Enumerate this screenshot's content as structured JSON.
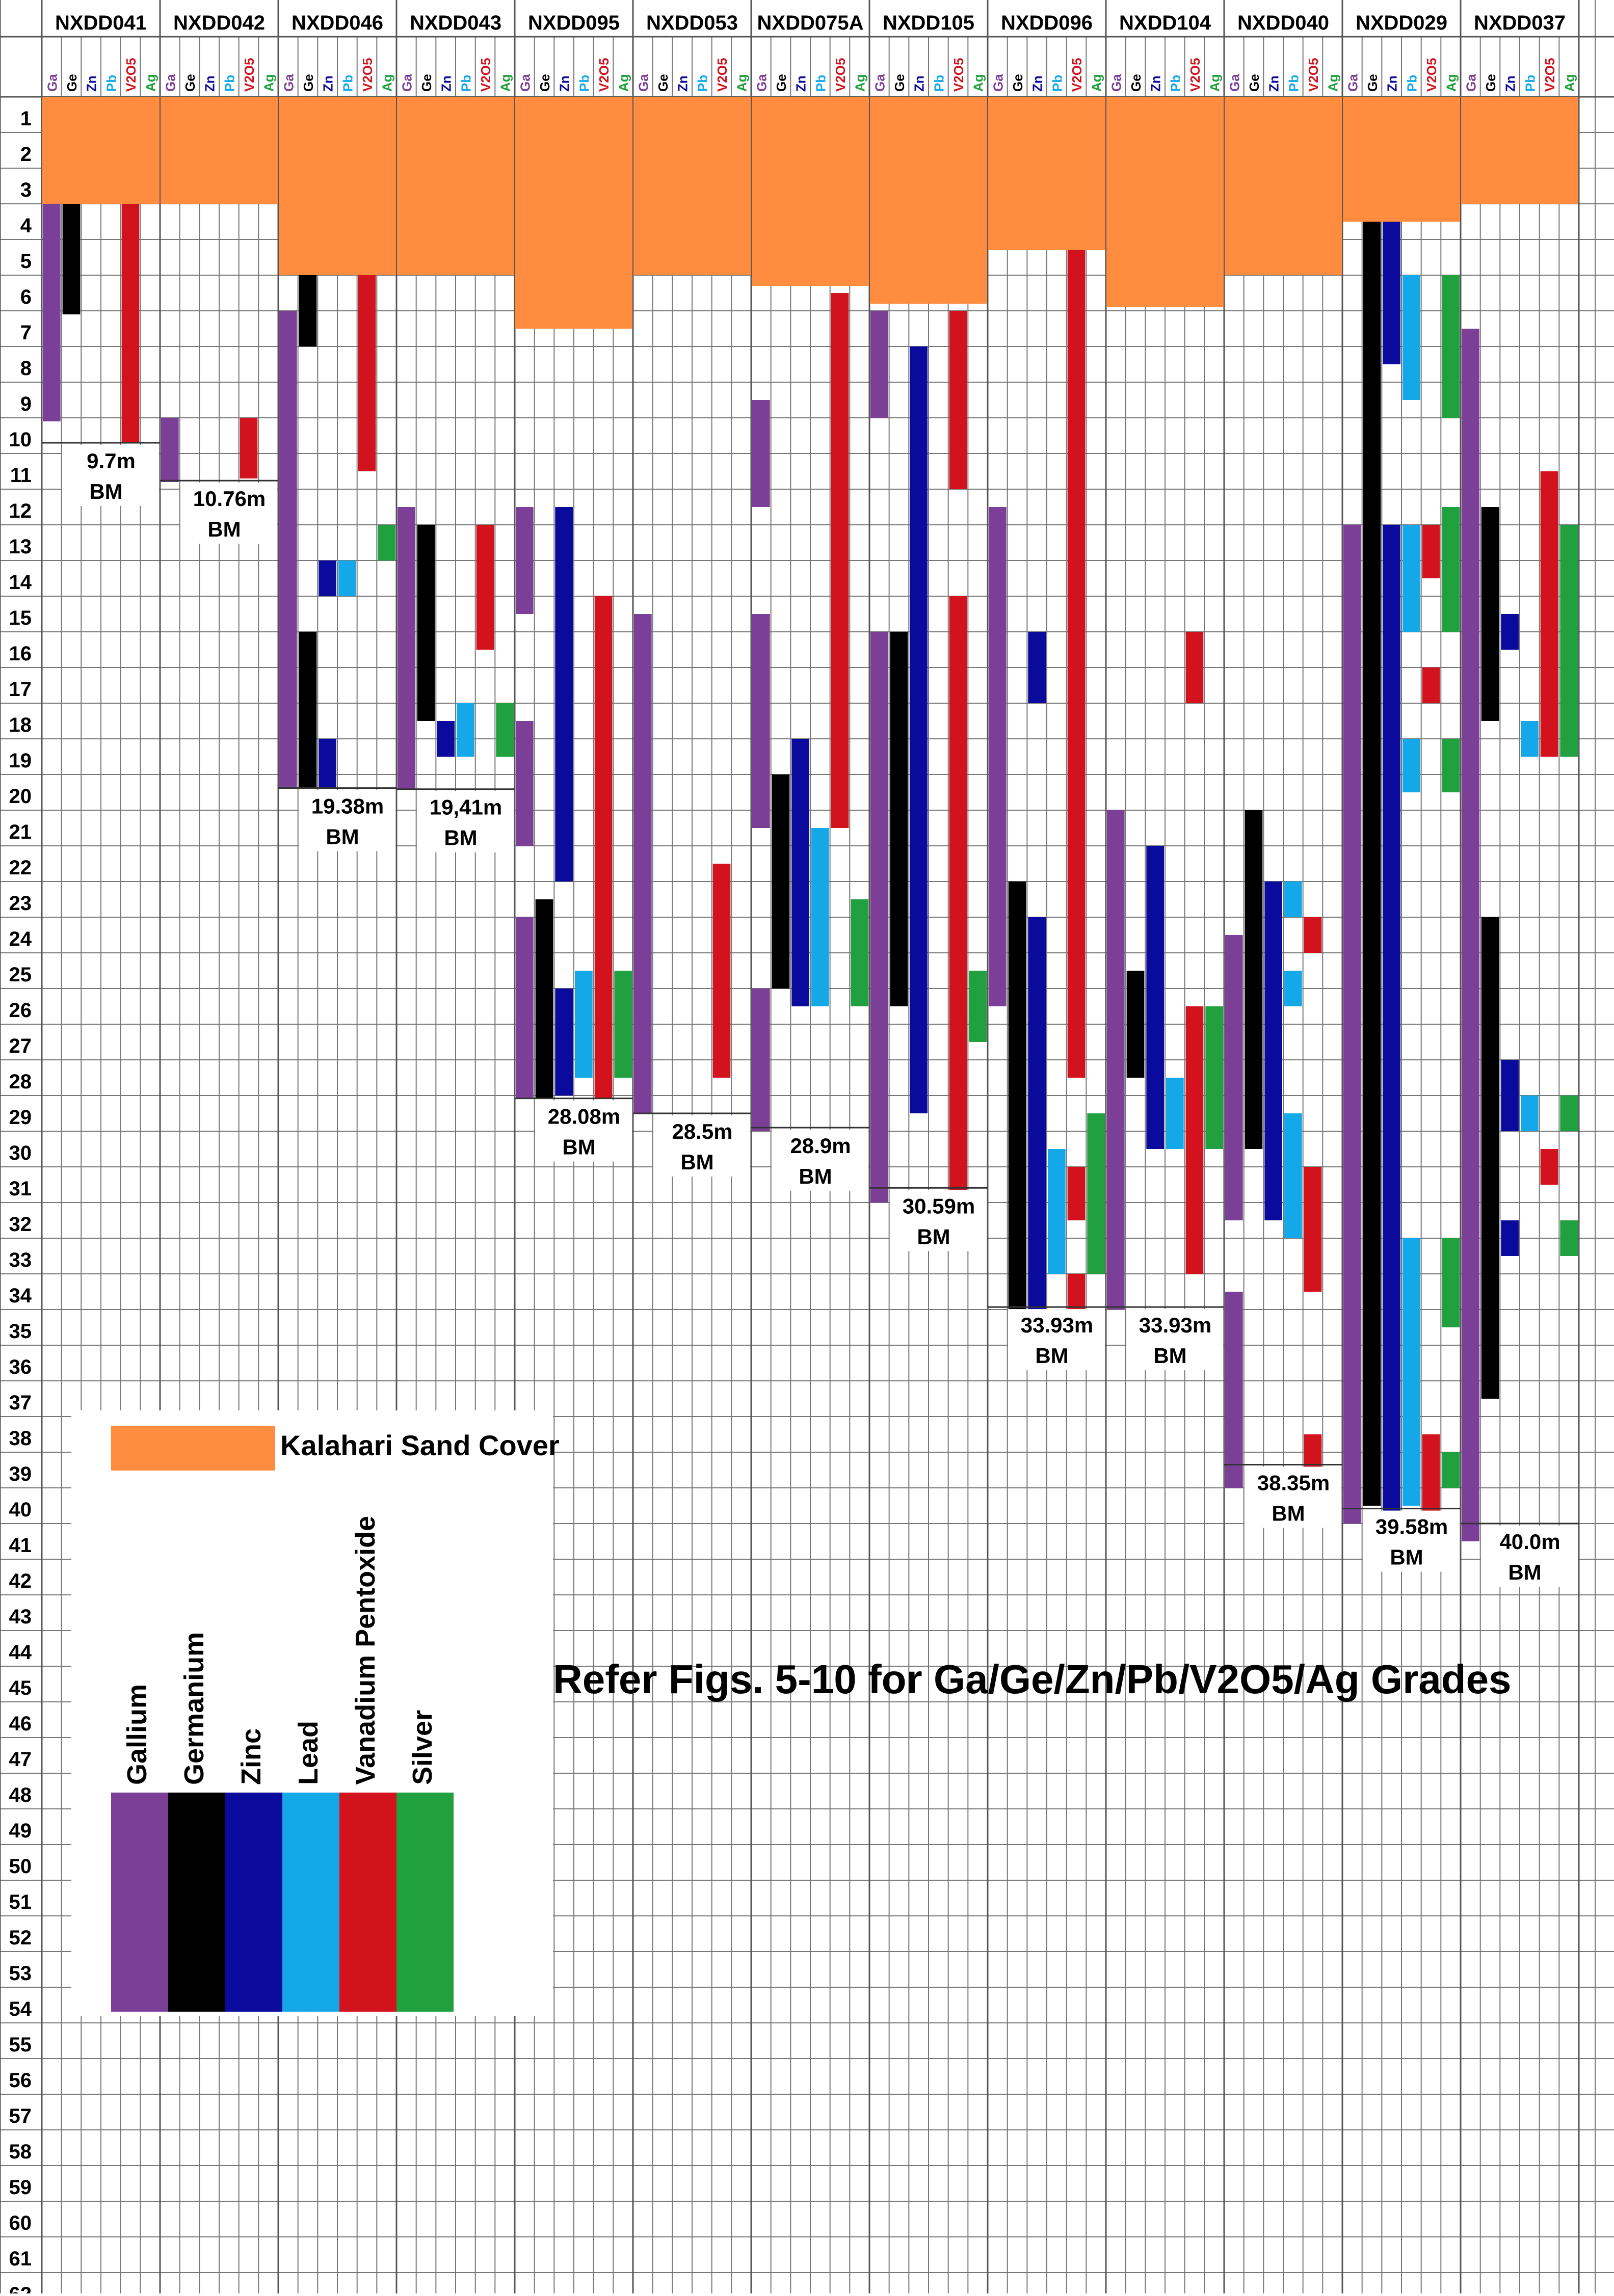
{
  "chart_data": {
    "type": "strip-log",
    "depth_min": 0,
    "depth_max": 62,
    "depth_unit": "m",
    "depth_ticks": [
      1,
      2,
      3,
      4,
      5,
      6,
      7,
      8,
      9,
      10,
      11,
      12,
      13,
      14,
      15,
      16,
      17,
      18,
      19,
      20,
      21,
      22,
      23,
      24,
      25,
      26,
      27,
      28,
      29,
      30,
      31,
      32,
      33,
      34,
      35,
      36,
      37,
      38,
      39,
      40,
      41,
      42,
      43,
      44,
      45,
      46,
      47,
      48,
      49,
      50,
      51,
      52,
      53,
      54,
      55,
      56,
      57,
      58,
      59,
      60,
      61,
      62
    ],
    "element_columns": [
      "Ga",
      "Ge",
      "Zn",
      "Pb",
      "V2O5",
      "Ag"
    ],
    "element_colors": {
      "Ga": "#7b3f98",
      "Ge": "#000000",
      "Zn": "#0a0a9c",
      "Pb": "#14a8e8",
      "V2O5": "#d2121c",
      "Ag": "#21a03f",
      "sand": "#ff8c3f"
    },
    "holes": [
      {
        "id": "NXDD041",
        "sand_to": 3,
        "eoh": 9.7,
        "eoh_label": "9.7m",
        "bm_label": "BM",
        "intervals": {
          "Ga": [
            [
              3,
              9.1
            ]
          ],
          "Ge": [
            [
              3,
              6.1
            ]
          ],
          "V2O5": [
            [
              3,
              9.7
            ]
          ]
        }
      },
      {
        "id": "NXDD042",
        "sand_to": 3,
        "eoh": 10.76,
        "eoh_label": "10.76m",
        "bm_label": "BM",
        "intervals": {
          "Ga": [
            [
              9,
              10.8
            ]
          ],
          "V2O5": [
            [
              9,
              10.7
            ]
          ]
        }
      },
      {
        "id": "NXDD046",
        "sand_to": 5,
        "eoh": 19.38,
        "eoh_label": "19.38m",
        "bm_label": "BM",
        "intervals": {
          "Ga": [
            [
              6,
              19.4
            ]
          ],
          "Ge": [
            [
              5,
              7
            ],
            [
              15,
              19.4
            ]
          ],
          "Zn": [
            [
              13,
              14
            ],
            [
              18,
              19.4
            ]
          ],
          "Pb": [
            [
              13,
              14
            ]
          ],
          "V2O5": [
            [
              5,
              10.5
            ]
          ],
          "Ag": [
            [
              12,
              13
            ]
          ]
        }
      },
      {
        "id": "NXDD043",
        "sand_to": 5,
        "eoh": 19.41,
        "eoh_label": "19,41m",
        "bm_label": "BM",
        "intervals": {
          "Ga": [
            [
              11.5,
              19.4
            ]
          ],
          "Ge": [
            [
              12,
              17.5
            ]
          ],
          "Zn": [
            [
              17.5,
              18.5
            ]
          ],
          "Pb": [
            [
              17,
              18.5
            ]
          ],
          "V2O5": [
            [
              12,
              15.5
            ]
          ],
          "Ag": [
            [
              17,
              18.5
            ]
          ]
        }
      },
      {
        "id": "NXDD095",
        "sand_to": 6.5,
        "eoh": 28.08,
        "eoh_label": "28.08m",
        "bm_label": "BM",
        "intervals": {
          "Ga": [
            [
              11.5,
              14.5
            ],
            [
              17.5,
              21
            ],
            [
              23,
              28.1
            ]
          ],
          "Ge": [
            [
              22.5,
              28.1
            ]
          ],
          "Zn": [
            [
              11.5,
              22
            ],
            [
              25,
              28
            ]
          ],
          "Pb": [
            [
              24.5,
              27.5
            ]
          ],
          "V2O5": [
            [
              14,
              28.1
            ]
          ],
          "Ag": [
            [
              24.5,
              27.5
            ]
          ]
        }
      },
      {
        "id": "NXDD053",
        "sand_to": 5,
        "eoh": 28.5,
        "eoh_label": "28.5m",
        "bm_label": "BM",
        "intervals": {
          "Ga": [
            [
              14.5,
              28.5
            ]
          ],
          "V2O5": [
            [
              21.5,
              27.5
            ]
          ]
        }
      },
      {
        "id": "NXDD075A",
        "sand_to": 5.3,
        "eoh": 28.9,
        "eoh_label": "28.9m",
        "bm_label": "BM",
        "intervals": {
          "Ga": [
            [
              8.5,
              11.5
            ],
            [
              14.5,
              20.5
            ],
            [
              25,
              29
            ]
          ],
          "Ge": [
            [
              19,
              25
            ]
          ],
          "Zn": [
            [
              18,
              25.5
            ]
          ],
          "Pb": [
            [
              20.5,
              25.5
            ]
          ],
          "V2O5": [
            [
              5.5,
              20.5
            ]
          ],
          "Ag": [
            [
              22.5,
              25.5
            ]
          ]
        }
      },
      {
        "id": "NXDD105",
        "sand_to": 5.8,
        "eoh": 30.59,
        "eoh_label": "30.59m",
        "bm_label": "BM",
        "intervals": {
          "Ga": [
            [
              6,
              9
            ],
            [
              15,
              31
            ]
          ],
          "Ge": [
            [
              15,
              25.5
            ]
          ],
          "Zn": [
            [
              7,
              28.5
            ]
          ],
          "V2O5": [
            [
              6,
              11
            ],
            [
              14,
              31
            ]
          ],
          "Ag": [
            [
              24.5,
              26.5
            ]
          ]
        }
      },
      {
        "id": "NXDD096",
        "sand_to": 4.3,
        "eoh": 33.93,
        "eoh_label": "33.93m",
        "bm_label": "BM",
        "intervals": {
          "Ga": [
            [
              11.5,
              25.5
            ]
          ],
          "Ge": [
            [
              22,
              34
            ]
          ],
          "Zn": [
            [
              15,
              17
            ],
            [
              23,
              34
            ]
          ],
          "Pb": [
            [
              29.5,
              33
            ]
          ],
          "V2O5": [
            [
              4.3,
              27.5
            ],
            [
              30,
              31.5
            ],
            [
              33,
              34
            ]
          ],
          "Ag": [
            [
              28.5,
              33
            ]
          ]
        }
      },
      {
        "id": "NXDD104",
        "sand_to": 5.9,
        "eoh": 33.93,
        "eoh_label": "33.93m",
        "bm_label": "BM",
        "intervals": {
          "Ga": [
            [
              20,
              34
            ]
          ],
          "Ge": [
            [
              24.5,
              27.5
            ]
          ],
          "Zn": [
            [
              21,
              29.5
            ]
          ],
          "Pb": [
            [
              27.5,
              29.5
            ]
          ],
          "V2O5": [
            [
              15,
              17
            ],
            [
              25.5,
              33
            ]
          ],
          "Ag": [
            [
              25.5,
              29.5
            ]
          ]
        }
      },
      {
        "id": "NXDD040",
        "sand_to": 5,
        "eoh": 38.35,
        "eoh_label": "38.35m",
        "bm_label": "BM",
        "intervals": {
          "Ga": [
            [
              23.5,
              31.5
            ],
            [
              33.5,
              39
            ]
          ],
          "Ge": [
            [
              20,
              29.5
            ]
          ],
          "Zn": [
            [
              22,
              31.5
            ]
          ],
          "Pb": [
            [
              22,
              23
            ],
            [
              24.5,
              25.5
            ],
            [
              28.5,
              32
            ]
          ],
          "V2O5": [
            [
              23,
              24
            ],
            [
              30,
              33.5
            ],
            [
              37.5,
              38.5
            ]
          ]
        }
      },
      {
        "id": "NXDD029",
        "sand_to": 3.5,
        "eoh": 39.58,
        "eoh_label": "39.58m",
        "bm_label": "BM",
        "intervals": {
          "Ga": [
            [
              12,
              40
            ]
          ],
          "Ge": [
            [
              3.5,
              39.5
            ]
          ],
          "Zn": [
            [
              3.5,
              7.5
            ],
            [
              12,
              40
            ]
          ],
          "Pb": [
            [
              5,
              8.5
            ],
            [
              12,
              15
            ],
            [
              18,
              19.5
            ],
            [
              32,
              39.5
            ]
          ],
          "V2O5": [
            [
              12,
              13.5
            ],
            [
              16,
              17
            ],
            [
              37.5,
              40
            ]
          ],
          "Ag": [
            [
              5,
              9
            ],
            [
              11.5,
              15
            ],
            [
              18,
              19.5
            ],
            [
              32,
              34.5
            ],
            [
              38,
              39
            ]
          ]
        }
      },
      {
        "id": "NXDD037",
        "sand_to": 3,
        "eoh": 40.0,
        "eoh_label": "40.0m",
        "bm_label": "BM",
        "intervals": {
          "Ga": [
            [
              6.5,
              40.5
            ]
          ],
          "Ge": [
            [
              11.5,
              17.5
            ],
            [
              23,
              36.5
            ]
          ],
          "Zn": [
            [
              14.5,
              15.5
            ],
            [
              27,
              29
            ],
            [
              31.5,
              32.5
            ]
          ],
          "Pb": [
            [
              17.5,
              18.5
            ],
            [
              28,
              29
            ]
          ],
          "V2O5": [
            [
              10.5,
              18.5
            ],
            [
              29.5,
              30.5
            ]
          ],
          "Ag": [
            [
              12,
              18.5
            ],
            [
              28,
              29
            ],
            [
              31.5,
              32.5
            ]
          ]
        }
      }
    ]
  },
  "legend": {
    "sand_label": "Kalahari Sand Cover",
    "items": [
      {
        "label": "Gallium",
        "color": "#7b3f98"
      },
      {
        "label": "Germanium",
        "color": "#000000"
      },
      {
        "label": "Zinc",
        "color": "#0a0a9c"
      },
      {
        "label": "Lead",
        "color": "#14a8e8"
      },
      {
        "label": "Vanadium Pentoxide",
        "color": "#d2121c"
      },
      {
        "label": "Silver",
        "color": "#21a03f"
      }
    ]
  },
  "note": "Refer Figs. 5-10 for Ga/Ge/Zn/Pb/V2O5/Ag Grades"
}
